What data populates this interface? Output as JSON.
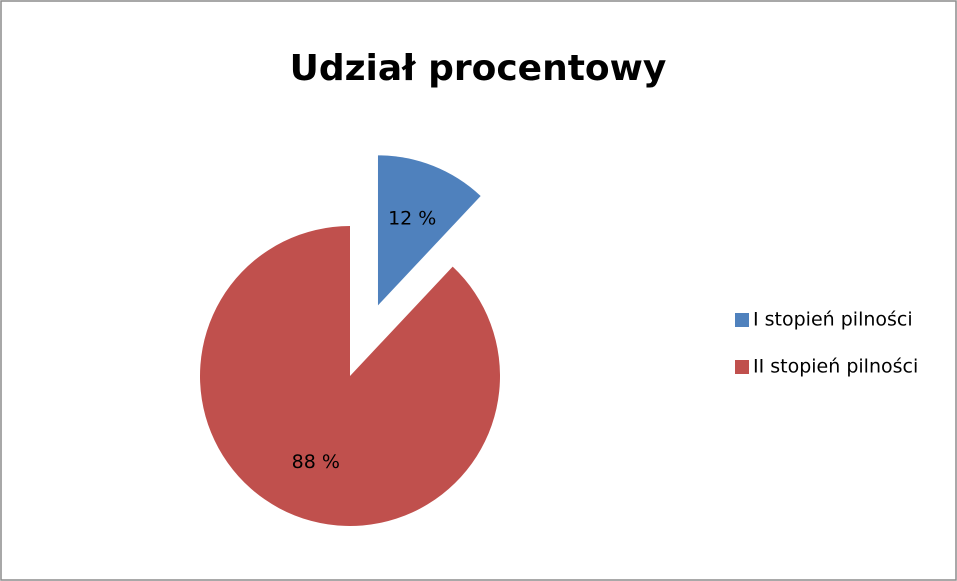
{
  "chart_data": {
    "type": "pie",
    "title": "Udział procentowy",
    "categories": [
      "I stopień pilności",
      "II stopień pilności"
    ],
    "values": [
      12,
      88
    ],
    "value_labels": [
      "12 %",
      "88 %"
    ],
    "colors": [
      "#4f81bd",
      "#c0504d"
    ],
    "legend": "right",
    "exploded": [
      0
    ]
  }
}
